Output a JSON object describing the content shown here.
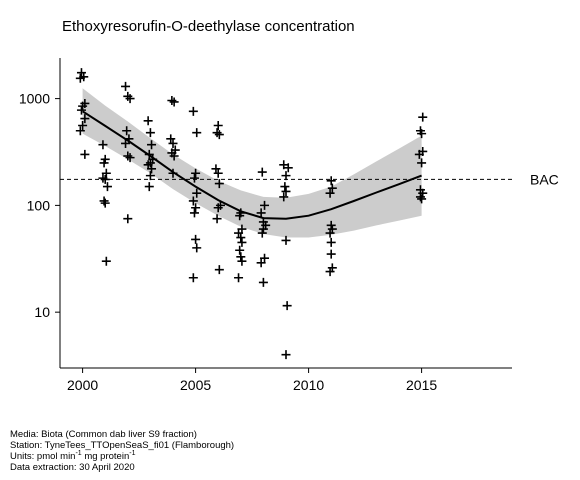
{
  "chart_data": {
    "type": "scatter",
    "title": "Ethoxyresorufin-O-deethylase concentration",
    "xlim": [
      1999,
      2019
    ],
    "ylim": [
      3,
      2400
    ],
    "yscale": "log",
    "x_ticks": [
      2000,
      2005,
      2010,
      2015
    ],
    "y_ticks": [
      10,
      100,
      1000
    ],
    "reference_line": {
      "label": "BAC",
      "value": 175,
      "style": "dashed"
    },
    "trend": {
      "x": [
        2000,
        2001,
        2002,
        2003,
        2004,
        2005,
        2006,
        2007,
        2008,
        2009,
        2010,
        2011,
        2012,
        2013,
        2014,
        2015
      ],
      "fit": [
        760,
        555,
        405,
        290,
        205,
        150,
        112,
        88,
        76,
        75,
        80,
        92,
        110,
        132,
        158,
        190
      ],
      "lower": [
        470,
        360,
        270,
        200,
        142,
        105,
        80,
        63,
        54,
        50,
        50,
        53,
        58,
        65,
        72,
        80
      ],
      "upper": [
        1250,
        860,
        610,
        425,
        300,
        222,
        170,
        138,
        120,
        118,
        128,
        150,
        195,
        258,
        340,
        450
      ]
    },
    "points": [
      {
        "x": 1999.95,
        "y": 1750
      },
      {
        "x": 2000.05,
        "y": 1600
      },
      {
        "x": 1999.9,
        "y": 1550
      },
      {
        "x": 2000.1,
        "y": 900
      },
      {
        "x": 2000.0,
        "y": 850
      },
      {
        "x": 1999.95,
        "y": 780
      },
      {
        "x": 2000.1,
        "y": 650
      },
      {
        "x": 2000.0,
        "y": 560
      },
      {
        "x": 1999.9,
        "y": 500
      },
      {
        "x": 2000.1,
        "y": 300
      },
      {
        "x": 2000.9,
        "y": 370
      },
      {
        "x": 2001.0,
        "y": 270
      },
      {
        "x": 2000.95,
        "y": 250
      },
      {
        "x": 2001.05,
        "y": 200
      },
      {
        "x": 2000.9,
        "y": 180
      },
      {
        "x": 2001.0,
        "y": 175
      },
      {
        "x": 2001.1,
        "y": 150
      },
      {
        "x": 2000.95,
        "y": 110
      },
      {
        "x": 2001.0,
        "y": 105
      },
      {
        "x": 2001.05,
        "y": 30
      },
      {
        "x": 2001.9,
        "y": 1300
      },
      {
        "x": 2002.0,
        "y": 1050
      },
      {
        "x": 2002.1,
        "y": 1000
      },
      {
        "x": 2001.95,
        "y": 500
      },
      {
        "x": 2002.05,
        "y": 420
      },
      {
        "x": 2001.9,
        "y": 380
      },
      {
        "x": 2002.0,
        "y": 290
      },
      {
        "x": 2002.1,
        "y": 280
      },
      {
        "x": 2002.0,
        "y": 75
      },
      {
        "x": 2002.9,
        "y": 620
      },
      {
        "x": 2003.0,
        "y": 480
      },
      {
        "x": 2003.05,
        "y": 370
      },
      {
        "x": 2002.95,
        "y": 300
      },
      {
        "x": 2003.1,
        "y": 270
      },
      {
        "x": 2003.0,
        "y": 250
      },
      {
        "x": 2002.9,
        "y": 240
      },
      {
        "x": 2003.05,
        "y": 220
      },
      {
        "x": 2003.0,
        "y": 190
      },
      {
        "x": 2002.95,
        "y": 150
      },
      {
        "x": 2003.95,
        "y": 960
      },
      {
        "x": 2004.05,
        "y": 930
      },
      {
        "x": 2003.9,
        "y": 420
      },
      {
        "x": 2004.0,
        "y": 380
      },
      {
        "x": 2004.1,
        "y": 330
      },
      {
        "x": 2003.95,
        "y": 310
      },
      {
        "x": 2004.05,
        "y": 290
      },
      {
        "x": 2004.0,
        "y": 200
      },
      {
        "x": 2004.9,
        "y": 760
      },
      {
        "x": 2005.05,
        "y": 480
      },
      {
        "x": 2005.0,
        "y": 200
      },
      {
        "x": 2004.95,
        "y": 180
      },
      {
        "x": 2005.05,
        "y": 130
      },
      {
        "x": 2004.9,
        "y": 110
      },
      {
        "x": 2005.0,
        "y": 95
      },
      {
        "x": 2004.95,
        "y": 85
      },
      {
        "x": 2005.0,
        "y": 48
      },
      {
        "x": 2005.05,
        "y": 40
      },
      {
        "x": 2004.9,
        "y": 21
      },
      {
        "x": 2006.0,
        "y": 560
      },
      {
        "x": 2005.95,
        "y": 480
      },
      {
        "x": 2006.05,
        "y": 460
      },
      {
        "x": 2005.9,
        "y": 220
      },
      {
        "x": 2006.0,
        "y": 200
      },
      {
        "x": 2006.05,
        "y": 160
      },
      {
        "x": 2006.1,
        "y": 100
      },
      {
        "x": 2006.0,
        "y": 95
      },
      {
        "x": 2005.95,
        "y": 75
      },
      {
        "x": 2006.05,
        "y": 25
      },
      {
        "x": 2007.0,
        "y": 85
      },
      {
        "x": 2006.95,
        "y": 80
      },
      {
        "x": 2007.05,
        "y": 60
      },
      {
        "x": 2006.9,
        "y": 55
      },
      {
        "x": 2007.0,
        "y": 50
      },
      {
        "x": 2007.05,
        "y": 45
      },
      {
        "x": 2006.95,
        "y": 38
      },
      {
        "x": 2007.0,
        "y": 33
      },
      {
        "x": 2007.05,
        "y": 30
      },
      {
        "x": 2006.9,
        "y": 21
      },
      {
        "x": 2007.95,
        "y": 205
      },
      {
        "x": 2008.05,
        "y": 100
      },
      {
        "x": 2007.9,
        "y": 85
      },
      {
        "x": 2008.0,
        "y": 70
      },
      {
        "x": 2008.1,
        "y": 65
      },
      {
        "x": 2008.0,
        "y": 60
      },
      {
        "x": 2007.95,
        "y": 55
      },
      {
        "x": 2008.05,
        "y": 32
      },
      {
        "x": 2007.9,
        "y": 29
      },
      {
        "x": 2008.0,
        "y": 19
      },
      {
        "x": 2008.9,
        "y": 240
      },
      {
        "x": 2009.1,
        "y": 225
      },
      {
        "x": 2009.0,
        "y": 190
      },
      {
        "x": 2008.95,
        "y": 150
      },
      {
        "x": 2009.0,
        "y": 135
      },
      {
        "x": 2008.9,
        "y": 120
      },
      {
        "x": 2009.0,
        "y": 47
      },
      {
        "x": 2009.05,
        "y": 11.5
      },
      {
        "x": 2009.0,
        "y": 4
      },
      {
        "x": 2011.0,
        "y": 170
      },
      {
        "x": 2011.05,
        "y": 145
      },
      {
        "x": 2010.95,
        "y": 130
      },
      {
        "x": 2011.0,
        "y": 65
      },
      {
        "x": 2011.05,
        "y": 60
      },
      {
        "x": 2010.95,
        "y": 55
      },
      {
        "x": 2011.0,
        "y": 45
      },
      {
        "x": 2011.0,
        "y": 35
      },
      {
        "x": 2011.05,
        "y": 26
      },
      {
        "x": 2010.95,
        "y": 24
      },
      {
        "x": 2015.05,
        "y": 670
      },
      {
        "x": 2014.95,
        "y": 500
      },
      {
        "x": 2015.0,
        "y": 470
      },
      {
        "x": 2015.05,
        "y": 320
      },
      {
        "x": 2014.9,
        "y": 300
      },
      {
        "x": 2015.0,
        "y": 250
      },
      {
        "x": 2014.95,
        "y": 140
      },
      {
        "x": 2015.05,
        "y": 130
      },
      {
        "x": 2014.95,
        "y": 120
      },
      {
        "x": 2015.0,
        "y": 115
      }
    ]
  },
  "footer": {
    "line1": "Media: Biota (Common dab liver S9 fraction)",
    "line2": "Station: TyneTees_TTOpenSeaS_fi01 (Flamborough)",
    "line3_units_prefix": "Units:  pmol min",
    "line3_sup1": "-1",
    "line3_mid": " mg protein",
    "line3_sup2": "-1",
    "line4": "Data extraction: 30 April 2020"
  }
}
